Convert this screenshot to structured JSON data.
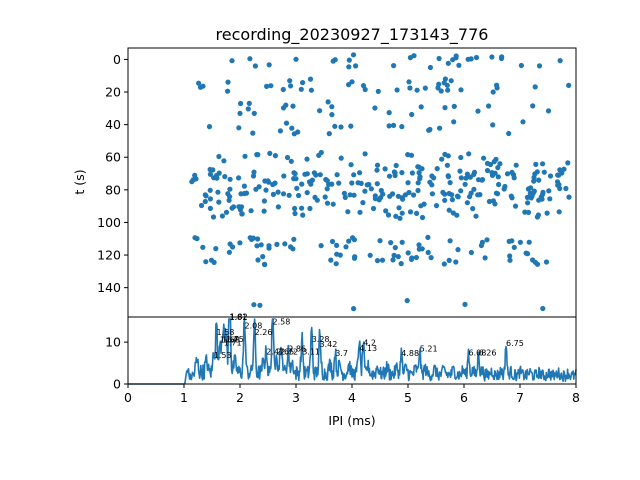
{
  "chart_data": [
    {
      "type": "scatter",
      "title": "recording_20230927_173143_776",
      "ylabel": "t (s)",
      "xlim": [
        0,
        8
      ],
      "ylim": [
        158,
        -7
      ],
      "y_inverted": true,
      "yticks": [
        "0",
        "20",
        "40",
        "60",
        "80",
        "100",
        "120",
        "140"
      ],
      "color": "#1f77b4",
      "bands": [
        {
          "t": 1,
          "x_start": 1.1,
          "x_end": 7.9,
          "mean_count": 30
        },
        {
          "t": 16,
          "x_start": 1.2,
          "x_end": 7.9,
          "mean_count": 38
        },
        {
          "t": 30,
          "x_start": 1.4,
          "x_end": 7.7,
          "mean_count": 22
        },
        {
          "t": 42,
          "x_start": 1.2,
          "x_end": 7.2,
          "mean_count": 22
        },
        {
          "t": 65,
          "x_start": 1.3,
          "x_end": 7.9,
          "mean_count": 70
        },
        {
          "t": 77,
          "x_start": 1.1,
          "x_end": 7.95,
          "mean_count": 130
        },
        {
          "t": 90,
          "x_start": 1.3,
          "x_end": 7.9,
          "mean_count": 90
        },
        {
          "t": 113,
          "x_start": 1.1,
          "x_end": 7.3,
          "mean_count": 45
        },
        {
          "t": 122,
          "x_start": 1.1,
          "x_end": 7.5,
          "mean_count": 40
        },
        {
          "t": 150,
          "x_start": 2.2,
          "x_end": 7.9,
          "mean_count": 6
        }
      ]
    },
    {
      "type": "line",
      "xlabel": "IPI (ms)",
      "xlim": [
        0,
        8
      ],
      "ylim": [
        0,
        16
      ],
      "xticks": [
        "0",
        "1",
        "2",
        "3",
        "4",
        "5",
        "6",
        "7",
        "8"
      ],
      "yticks": [
        "0",
        "10"
      ],
      "color": "#1f77b4",
      "peaks": [
        {
          "x": 1.75,
          "y": 9.8,
          "label": "1.75"
        },
        {
          "x": 1.53,
          "y": 6.0,
          "label": "1.53"
        },
        {
          "x": 1.58,
          "y": 11.5,
          "label": "1.58"
        },
        {
          "x": 1.64,
          "y": 9.7,
          "label": "1.64"
        },
        {
          "x": 1.68,
          "y": 9.7,
          "label": "1.68"
        },
        {
          "x": 1.71,
          "y": 9.0,
          "label": "1.71"
        },
        {
          "x": 1.81,
          "y": 15.0,
          "label": "1.81"
        },
        {
          "x": 1.82,
          "y": 15.2,
          "label": "1.82"
        },
        {
          "x": 2.08,
          "y": 13.0,
          "label": "2.08"
        },
        {
          "x": 2.26,
          "y": 11.5,
          "label": "2.26"
        },
        {
          "x": 2.47,
          "y": 6.8,
          "label": "2.47"
        },
        {
          "x": 2.58,
          "y": 14.0,
          "label": "2.58"
        },
        {
          "x": 2.65,
          "y": 6.8,
          "label": "2.65"
        },
        {
          "x": 2.72,
          "y": 6.8,
          "label": "2.72"
        },
        {
          "x": 2.86,
          "y": 7.5,
          "label": "2.86"
        },
        {
          "x": 3.11,
          "y": 6.8,
          "label": "3.11"
        },
        {
          "x": 3.28,
          "y": 9.8,
          "label": "3.28"
        },
        {
          "x": 3.42,
          "y": 8.6,
          "label": "3.42"
        },
        {
          "x": 3.7,
          "y": 6.5,
          "label": "3.7"
        },
        {
          "x": 4.13,
          "y": 7.7,
          "label": "4.13"
        },
        {
          "x": 4.2,
          "y": 8.9,
          "label": "4.2"
        },
        {
          "x": 4.88,
          "y": 6.5,
          "label": "4.88"
        },
        {
          "x": 5.21,
          "y": 7.5,
          "label": "5.21"
        },
        {
          "x": 6.08,
          "y": 6.6,
          "label": "6.08"
        },
        {
          "x": 6.26,
          "y": 6.6,
          "label": "6.26"
        },
        {
          "x": 6.75,
          "y": 8.8,
          "label": "6.75"
        }
      ]
    }
  ]
}
